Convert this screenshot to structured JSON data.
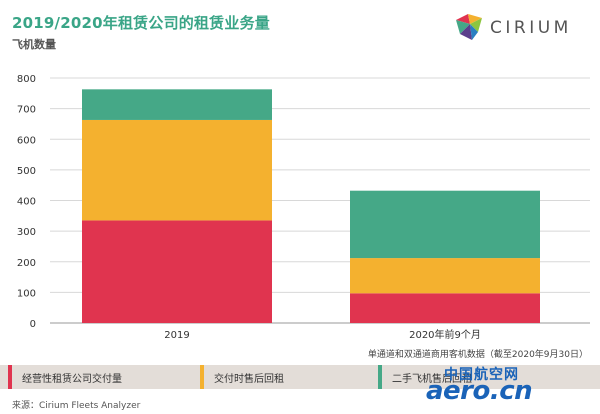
{
  "header": {
    "title": "2019/2020年租赁公司的租赁业务量",
    "logo_text": "CIRIUM"
  },
  "footnote": "单通道和双通道商用客机数据（截至2020年9月30日）",
  "source": "来源：Cirium Fleets Analyzer",
  "watermark": {
    "cn": "中国航空网",
    "en": "aero.cn"
  },
  "colors": {
    "red": "#e0344f",
    "yellow": "#f4b12f",
    "green": "#45a887",
    "title": "#3aa587"
  },
  "chart_data": {
    "type": "bar",
    "stacked": true,
    "title": "2019/2020年租赁公司的租赁业务量",
    "ylabel": "飞机数量",
    "xlabel": "",
    "ylim": [
      0,
      800
    ],
    "yticks": [
      0,
      100,
      200,
      300,
      400,
      500,
      600,
      700,
      800
    ],
    "categories": [
      "2019",
      "2020年前9个月"
    ],
    "grid": true,
    "legend": "bottom",
    "series": [
      {
        "name": "经营性租赁公司交付量",
        "color": "#e0344f",
        "values": [
          335,
          97
        ]
      },
      {
        "name": "交付时售后回租",
        "color": "#f4b12f",
        "values": [
          328,
          115
        ]
      },
      {
        "name": "二手飞机售后回租",
        "color": "#45a887",
        "values": [
          100,
          220
        ]
      }
    ]
  }
}
